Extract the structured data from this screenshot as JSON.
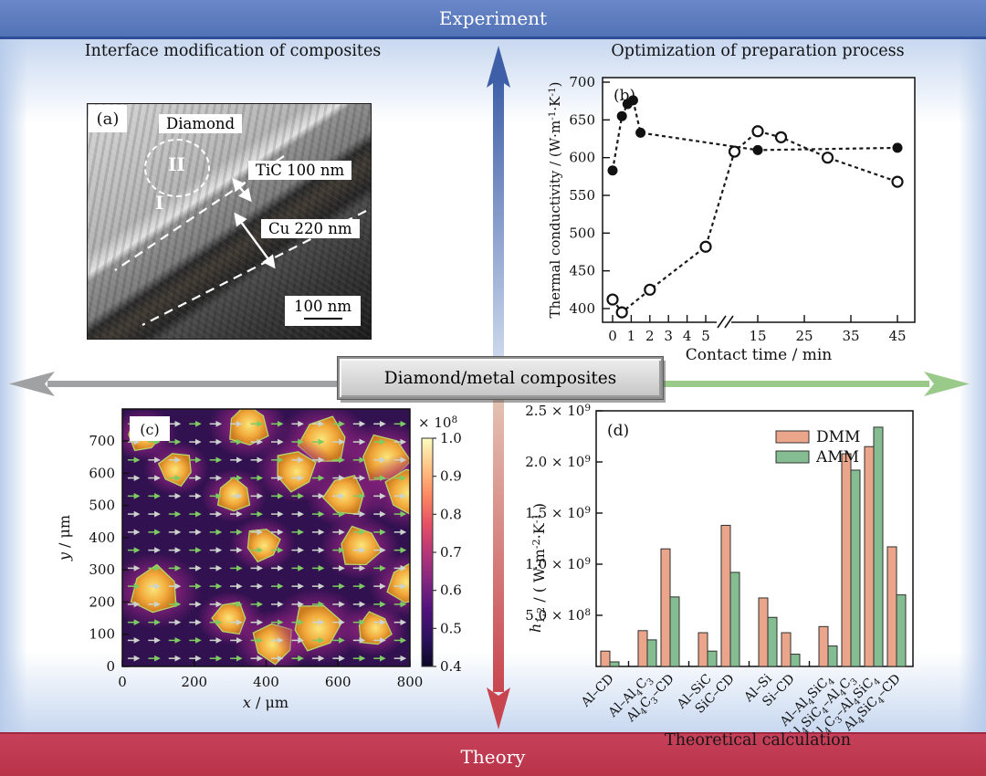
{
  "banners": {
    "top": {
      "label": "Experiment",
      "bg": "#5e7cbf",
      "text_color": "#ffffff"
    },
    "bottom": {
      "label": "Theory",
      "bg": "#c03a52",
      "text_color": "#ffffff"
    }
  },
  "section_titles": {
    "top_left": "Interface modification of composites",
    "top_right": "Optimization of preparation process",
    "bottom_right": "Theoretical calculation"
  },
  "center_box": {
    "label": "Diamond/metal composites"
  },
  "arrows": {
    "up_color": "#3e5fa8",
    "up_pale": "#ccd8ec",
    "down_color": "#c8454f",
    "down_pale": "#e4c3b3",
    "left_color": "#9fa1a3",
    "right_color": "#9aca8a"
  },
  "panel_a": {
    "tag": "(a)",
    "labels": {
      "region_top": "Diamond",
      "zone_2": "II",
      "zone_1": "I",
      "layer_1": "TiC 100 nm",
      "layer_2": "Cu 220 nm",
      "scalebar": "100 nm"
    }
  },
  "chart_data": [
    {
      "type": "scatter",
      "panel": "(b)",
      "xlabel": "Contact time / min",
      "ylabel": "Thermal conductivity / (W·m⁻¹·K⁻¹)",
      "yticks": [
        400,
        450,
        500,
        550,
        600,
        650,
        700
      ],
      "xticks_left": [
        0,
        1,
        2,
        3,
        4,
        5
      ],
      "xticks_right": [
        15,
        25,
        35,
        45
      ],
      "axis_break": "//",
      "line_style": "dashed",
      "series": [
        {
          "name": "filled-circles",
          "marker": "filled",
          "points": [
            [
              0,
              583
            ],
            [
              0.5,
              655
            ],
            [
              0.8,
              671
            ],
            [
              1.1,
              676
            ],
            [
              1.5,
              633
            ],
            [
              15,
              610
            ],
            [
              45,
              613
            ]
          ]
        },
        {
          "name": "open-circles",
          "marker": "open",
          "points": [
            [
              0,
              412
            ],
            [
              0.5,
              395
            ],
            [
              2,
              425
            ],
            [
              5,
              482
            ],
            [
              10,
              608
            ],
            [
              15,
              635
            ],
            [
              20,
              627
            ],
            [
              30,
              600
            ],
            [
              45,
              568
            ]
          ]
        }
      ]
    },
    {
      "type": "heatmap",
      "panel": "(c)",
      "xlabel_var": "x",
      "xlabel_rest": " / μm",
      "ylabel_var": "y",
      "ylabel_rest": " / μm",
      "xlim": [
        0,
        800
      ],
      "ylim": [
        0,
        800
      ],
      "xticks": [
        0,
        200,
        400,
        600,
        800
      ],
      "yticks": [
        0,
        100,
        200,
        300,
        400,
        500,
        600,
        700
      ],
      "description": "Simulated heat-flux field in diamond/metal composite: orange diamond particles in purple matrix with horizontal flow arrows",
      "particles": [
        [
          60,
          720
        ],
        [
          350,
          745
        ],
        [
          560,
          700
        ],
        [
          150,
          615
        ],
        [
          480,
          610
        ],
        [
          730,
          645
        ],
        [
          310,
          530
        ],
        [
          620,
          530
        ],
        [
          800,
          545
        ],
        [
          390,
          380
        ],
        [
          660,
          370
        ],
        [
          90,
          235
        ],
        [
          300,
          150
        ],
        [
          420,
          75
        ],
        [
          540,
          125
        ],
        [
          700,
          115
        ],
        [
          795,
          255
        ]
      ],
      "colorbar": {
        "title": "× 10⁸",
        "tick_labels": [
          "1.0",
          "0.9",
          "0.8",
          "0.7",
          "0.6",
          "0.5",
          "0.4"
        ],
        "range": [
          0.4,
          1.0
        ],
        "colors_top_to_bottom": [
          "#fcfdbf",
          "#fec488",
          "#fc8961",
          "#e65164",
          "#b73779",
          "#822681",
          "#51127c",
          "#2c115f",
          "#0b0724"
        ]
      }
    },
    {
      "type": "bar",
      "panel": "(d)",
      "ylabel_var": "h",
      "ylabel_sub": "1,2",
      "ylabel_rest": " / ( W·m⁻²·K⁻¹ )",
      "yticks": [
        {
          "v": 500000000.0,
          "label": "5.0 × 10⁸"
        },
        {
          "v": 1000000000.0,
          "label": "1.0 × 10⁹"
        },
        {
          "v": 1500000000.0,
          "label": "1.5 × 10⁹"
        },
        {
          "v": 2000000000.0,
          "label": "2.0 × 10⁹"
        },
        {
          "v": 2500000000.0,
          "label": "2.5 × 10⁹"
        }
      ],
      "ymax": 2500000000.0,
      "categories": [
        "Al–CD",
        "Al–Al₄C₃",
        "Al₄C₃–CD",
        "Al–SiC",
        "SiC–CD",
        "Al–Si",
        "Si–CD",
        "Al–Al₄SiC₄",
        "Al₄SiC₄–Al₄C₃",
        "Al₄C₃–Al₄SiC₄",
        "Al₄SiC₄–CD"
      ],
      "groups": [
        [
          0
        ],
        [
          1,
          2
        ],
        [
          3,
          4
        ],
        [
          5,
          6
        ],
        [
          7,
          8,
          9,
          10
        ]
      ],
      "series": [
        {
          "name": "DMM",
          "color": "#eba58b",
          "values": [
            150000000.0,
            350000000.0,
            1150000000.0,
            330000000.0,
            1380000000.0,
            670000000.0,
            330000000.0,
            390000000.0,
            2080000000.0,
            2150000000.0,
            1170000000.0
          ]
        },
        {
          "name": "AMM",
          "color": "#85bd92",
          "values": [
            45000000.0,
            260000000.0,
            680000000.0,
            150000000.0,
            920000000.0,
            480000000.0,
            120000000.0,
            200000000.0,
            1920000000.0,
            2340000000.0,
            700000000.0
          ]
        }
      ]
    }
  ]
}
